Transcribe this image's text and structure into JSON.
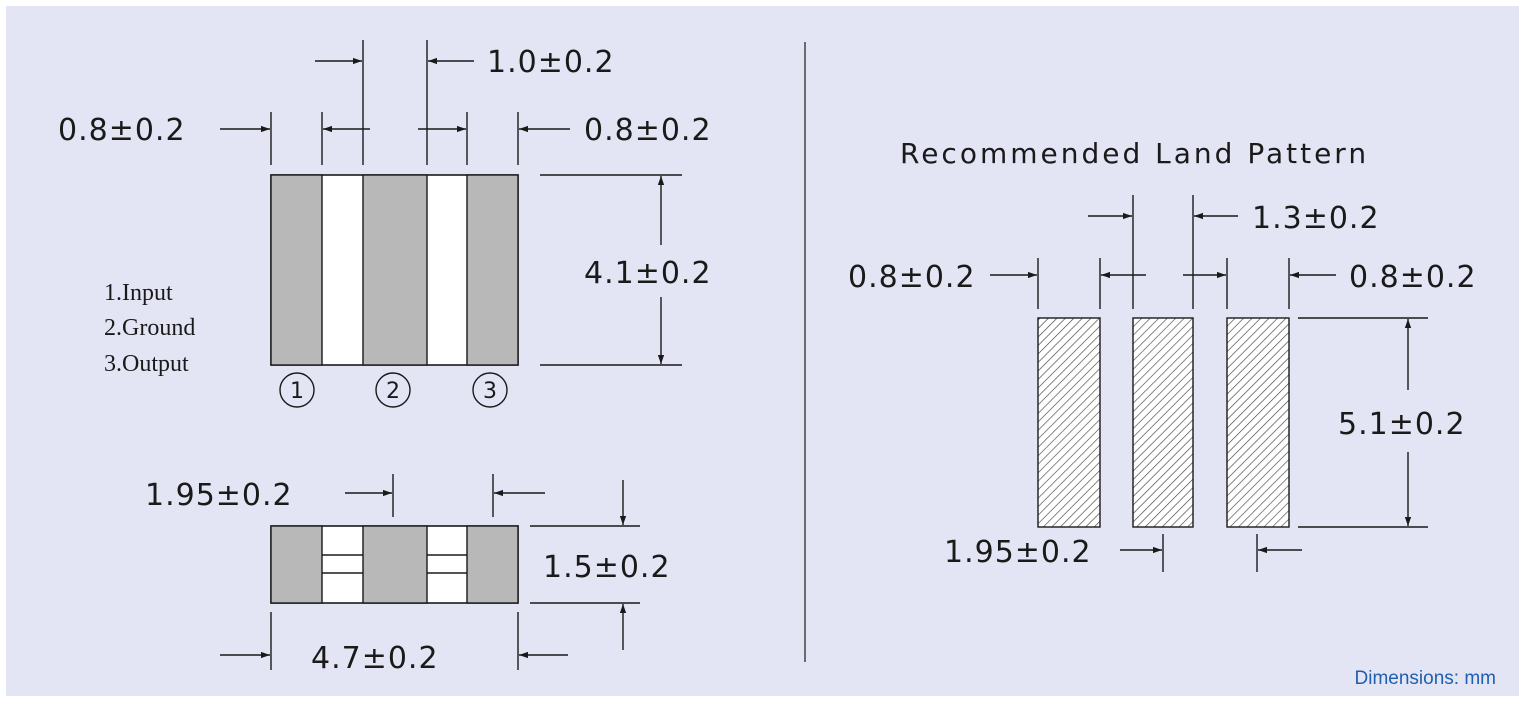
{
  "top_view": {
    "dims": {
      "gap_top": "1.0±0.2",
      "electrode_left": "0.8±0.2",
      "electrode_right": "0.8±0.2",
      "height": "4.1±0.2"
    },
    "pin_legend": [
      "1.Input",
      "2.Ground",
      "3.Output"
    ],
    "pin_numbers": [
      "1",
      "2",
      "3"
    ]
  },
  "side_view": {
    "dims": {
      "pitch": "1.95±0.2",
      "thickness": "1.5±0.2",
      "length": "4.7±0.2"
    }
  },
  "land_pattern": {
    "title": "Recommended Land Pattern",
    "dims": {
      "gap_top": "1.3±0.2",
      "pad_left": "0.8±0.2",
      "pad_right": "0.8±0.2",
      "height": "5.1±0.2",
      "pitch": "1.95±0.2"
    }
  },
  "units_note": "Dimensions: mm",
  "colors": {
    "background": "#e3e5f4",
    "electrode": "#b8b8b8",
    "units_text": "#1f5fae"
  }
}
